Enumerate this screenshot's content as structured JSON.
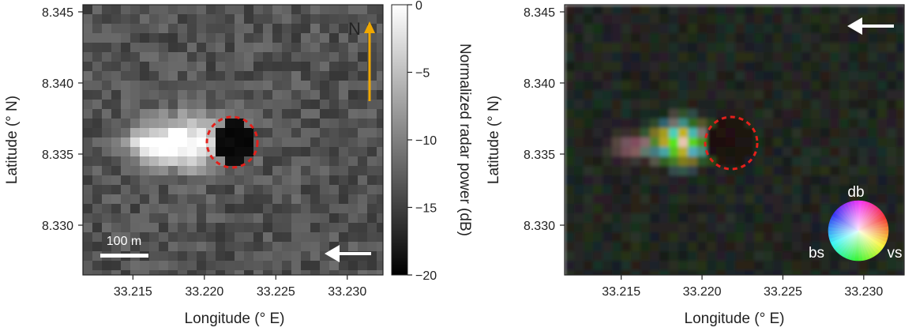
{
  "panels": {
    "left": {
      "xlabel": "Longitude (° E)",
      "ylabel": "Latitude (° N)",
      "x_ticks": [
        "33.215",
        "33.220",
        "33.225",
        "33.230"
      ],
      "y_ticks": [
        "8.345",
        "8.340",
        "8.335",
        "8.330"
      ],
      "north_label": "N",
      "scale_bar_label": "100 m",
      "colorbar": {
        "label": "Normalized radar power (dB)",
        "ticks": [
          "0",
          "−5",
          "−10",
          "−15",
          "−20"
        ],
        "range": [
          -20,
          0
        ]
      },
      "colors": {
        "north_arrow": "#f0a800",
        "circle": "#e3201b",
        "arrow": "#ffffff"
      }
    },
    "right": {
      "xlabel": "Longitude (° E)",
      "ylabel": "Latitude (° N)",
      "x_ticks": [
        "33.215",
        "33.220",
        "33.225",
        "33.230"
      ],
      "y_ticks": [
        "8.345",
        "8.340",
        "8.335",
        "8.330"
      ],
      "color_wheel": {
        "top": "db",
        "left": "bs",
        "right": "vs"
      },
      "colors": {
        "circle": "#e3201b",
        "arrow": "#ffffff"
      }
    }
  },
  "chart_data": [
    {
      "type": "heatmap",
      "xlabel": "Longitude (° E)",
      "ylabel": "Latitude (° N)",
      "xlim": [
        33.2115,
        33.2325
      ],
      "ylim": [
        8.3265,
        8.3455
      ],
      "x_ticks": [
        33.215,
        33.22,
        33.225,
        33.23
      ],
      "y_ticks": [
        8.345,
        8.34,
        8.335,
        8.33
      ],
      "colorbar_label": "Normalized radar power (dB)",
      "colorbar_range": [
        -20,
        0
      ],
      "colormap": "gray"
    },
    {
      "type": "heatmap",
      "xlabel": "Longitude (° E)",
      "ylabel": "Latitude (° N)",
      "xlim": [
        33.2115,
        33.2325
      ],
      "ylim": [
        8.3265,
        8.3455
      ],
      "x_ticks": [
        33.215,
        33.22,
        33.225,
        33.23
      ],
      "y_ticks": [
        8.345,
        8.34,
        8.335,
        8.33
      ],
      "colormap": "rgb-decomposition"
    }
  ]
}
